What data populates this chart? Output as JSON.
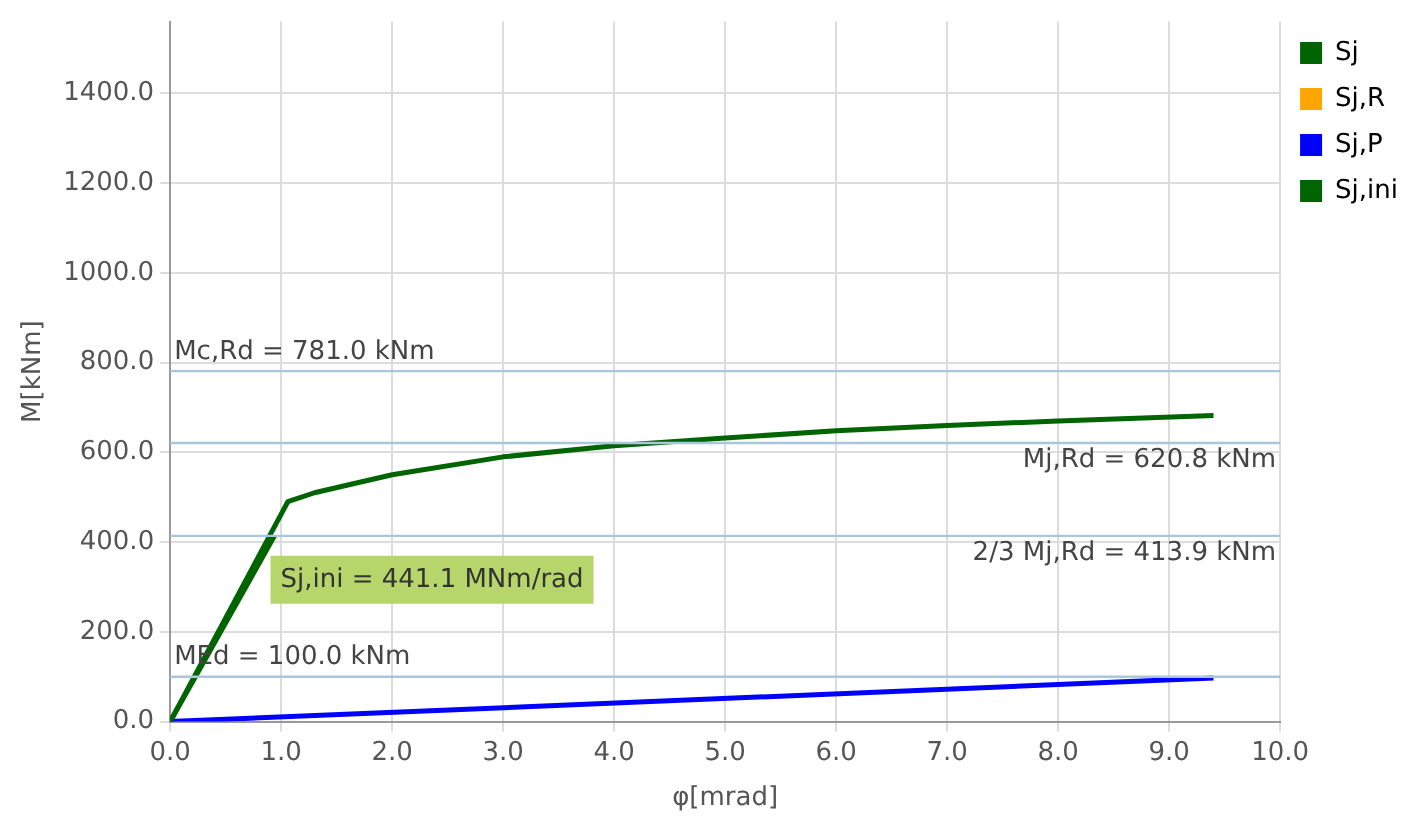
{
  "chart_data": {
    "type": "line",
    "xlabel": "φ[mrad]",
    "ylabel": "M[kNm]",
    "xlim": [
      0,
      10
    ],
    "ylim": [
      0,
      1560
    ],
    "xticks": [
      {
        "value": 0,
        "label": "0.0"
      },
      {
        "value": 1,
        "label": "1.0"
      },
      {
        "value": 2,
        "label": "2.0"
      },
      {
        "value": 3,
        "label": "3.0"
      },
      {
        "value": 4,
        "label": "4.0"
      },
      {
        "value": 5,
        "label": "5.0"
      },
      {
        "value": 6,
        "label": "6.0"
      },
      {
        "value": 7,
        "label": "7.0"
      },
      {
        "value": 8,
        "label": "8.0"
      },
      {
        "value": 9,
        "label": "9.0"
      },
      {
        "value": 10,
        "label": "10.0"
      }
    ],
    "yticks": [
      {
        "value": 0,
        "label": "0.0"
      },
      {
        "value": 200,
        "label": "200.0"
      },
      {
        "value": 400,
        "label": "400.0"
      },
      {
        "value": 600,
        "label": "600.0"
      },
      {
        "value": 800,
        "label": "800.0"
      },
      {
        "value": 1000,
        "label": "1000.0"
      },
      {
        "value": 1200,
        "label": "1200.0"
      },
      {
        "value": 1400,
        "label": "1400.0"
      }
    ],
    "series": [
      {
        "name": "Sj",
        "color": "#006400",
        "x": [
          0,
          1.06,
          1.3,
          2,
          3,
          4,
          5,
          6,
          7,
          8,
          9.4
        ],
        "values": [
          0,
          490,
          510,
          550,
          590,
          615,
          632,
          648,
          660,
          670,
          682
        ]
      },
      {
        "name": "Sj,R",
        "color": "#ffa500"
      },
      {
        "name": "Sj,P",
        "color": "#0000ff",
        "x": [
          0,
          9.4
        ],
        "values": [
          0,
          97
        ]
      },
      {
        "name": "Sj,ini",
        "color": "#006400",
        "x": [
          0,
          0.94
        ],
        "values": [
          0,
          414
        ]
      }
    ],
    "ref_lines": [
      {
        "axis": "y",
        "value": 781,
        "label": "Mc,Rd = 781.0 kNm",
        "color": "#a9c6de"
      },
      {
        "axis": "y",
        "value": 620.8,
        "label": "Mj,Rd = 620.8 kNm",
        "color": "#a9c6de"
      },
      {
        "axis": "y",
        "value": 413.9,
        "label": "2/3 Mj,Rd = 413.9 kNm",
        "color": "#a9c6de"
      },
      {
        "axis": "y",
        "value": 100,
        "label": "MEd = 100.0 kNm",
        "color": "#a9c6de"
      }
    ],
    "annotations": [
      {
        "text": "Sj,ini = 441.1 MNm/rad",
        "x": 0.94,
        "y": 414
      }
    ],
    "grid": true,
    "legend": "top right",
    "marker": "none",
    "line_style": "solid"
  }
}
